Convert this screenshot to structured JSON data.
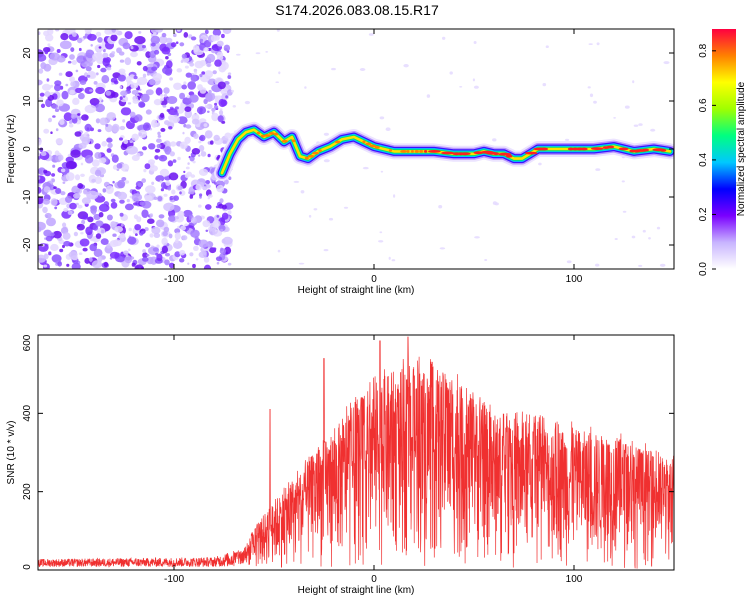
{
  "title": "S174.2026.083.08.15.R17",
  "chart_data": [
    {
      "type": "heatmap",
      "xlabel": "Height of straight line (km)",
      "ylabel": "Frequency (Hz)",
      "xlim": [
        -168,
        150
      ],
      "ylim": [
        -25,
        25
      ],
      "xticks": [
        -100,
        0,
        100
      ],
      "yticks": [
        -20,
        -10,
        0,
        10,
        20
      ],
      "colorbar": {
        "label": "Normalized spectral amplitude",
        "range": [
          0,
          0.88
        ],
        "ticks": [
          0,
          0.2,
          0.4,
          0.6,
          0.8
        ],
        "colors": [
          "#ffffff",
          "#c8b4ff",
          "#7a00ff",
          "#0000ff",
          "#00c8ff",
          "#00ff80",
          "#a0ff00",
          "#ffff00",
          "#ff8000",
          "#ff0040"
        ]
      },
      "noise_region_km": [
        -168,
        -72
      ],
      "ridge": {
        "x": [
          -76,
          -72,
          -68,
          -64,
          -60,
          -55,
          -50,
          -45,
          -41,
          -37,
          -33,
          -28,
          -22,
          -16,
          -10,
          -5,
          0,
          10,
          20,
          30,
          40,
          50,
          55,
          60,
          65,
          70,
          74,
          78,
          82,
          90,
          100,
          110,
          120,
          130,
          140,
          148
        ],
        "y": [
          -5,
          -1,
          2,
          3.5,
          4,
          2.5,
          3.5,
          1.5,
          2.5,
          -1.5,
          -2,
          -0.5,
          0.5,
          2,
          2.5,
          1.5,
          0.5,
          -0.5,
          -0.5,
          -0.5,
          -1,
          -1,
          -0.5,
          -1,
          -1,
          -2,
          -2,
          -1,
          0,
          0,
          0,
          0,
          0.5,
          -0.5,
          0,
          -0.5
        ]
      }
    },
    {
      "type": "line",
      "xlabel": "Height of straight line (km)",
      "ylabel": "SNR (10 * v/v)",
      "xlim": [
        -168,
        150
      ],
      "ylim": [
        0,
        600
      ],
      "xticks": [
        -100,
        0,
        100
      ],
      "yticks": [
        0,
        200,
        400,
        600
      ],
      "color": "#f03030",
      "envelope": {
        "x": [
          -168,
          -80,
          -65,
          -58,
          -50,
          -40,
          -30,
          -20,
          -10,
          0,
          10,
          20,
          30,
          40,
          50,
          60,
          70,
          80,
          90,
          100,
          110,
          120,
          130,
          140,
          150
        ],
        "y": [
          25,
          30,
          55,
          120,
          180,
          230,
          300,
          360,
          420,
          480,
          510,
          520,
          520,
          490,
          440,
          400,
          390,
          380,
          370,
          360,
          350,
          340,
          320,
          300,
          280
        ]
      },
      "peaks": [
        {
          "x": -52,
          "y": 410
        },
        {
          "x": -25,
          "y": 540
        },
        {
          "x": 3,
          "y": 585
        },
        {
          "x": 17,
          "y": 595
        }
      ]
    }
  ]
}
